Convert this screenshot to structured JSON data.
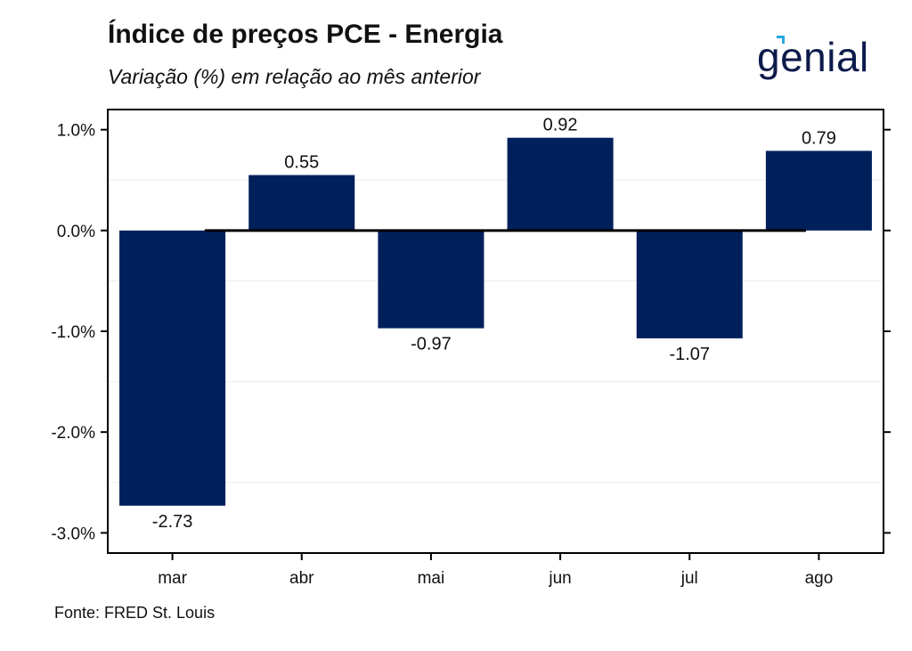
{
  "header": {
    "title": "Índice de preços PCE - Energia",
    "subtitle": "Variação (%) em relação ao mês anterior"
  },
  "brand": {
    "logo_text": "genial",
    "logo_color": "#0d1b4b",
    "accent_color": "#27a9e1"
  },
  "footer": {
    "source": "Fonte: FRED St. Louis"
  },
  "chart_data": {
    "type": "bar",
    "categories": [
      "mar",
      "abr",
      "mai",
      "jun",
      "jul",
      "ago"
    ],
    "values": [
      -2.73,
      0.55,
      -0.97,
      0.92,
      -1.07,
      0.79
    ],
    "data_labels": [
      "-2.73",
      "0.55",
      "-0.97",
      "0.92",
      "-1.07",
      "0.79"
    ],
    "ylim": [
      -3.2,
      1.2
    ],
    "yticks": [
      1.0,
      0.0,
      -1.0,
      -2.0,
      -3.0
    ],
    "ytick_labels": [
      "1.0%",
      "0.0%",
      "-1.0%",
      "-2.0%",
      "-3.0%"
    ],
    "bar_color": "#00205b",
    "zero_line_color": "#000000",
    "grid": "minor horizontal only",
    "xlabel": "",
    "ylabel": ""
  }
}
